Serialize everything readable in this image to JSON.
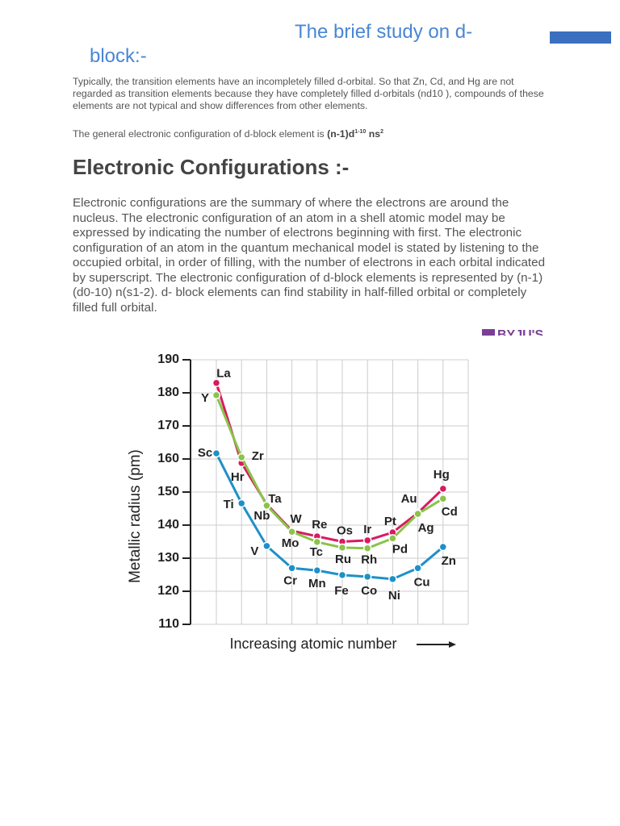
{
  "header": {
    "title_line1": "The brief study on d-",
    "title_line2": "block:-"
  },
  "intro": "Typically, the transition elements  have an incompletely filled d-orbital. So that  Zn, Cd, and Hg are not regarded as transition elements because they have completely filled d-orbitals (nd10 ), compounds of these elements are not typical and show differences from other elements.",
  "general": {
    "text": "The general electronic configuration of d-block element is ",
    "formula_base": "(n-1)d",
    "formula_sup1": "1-10",
    "formula_mid": " ns",
    "formula_sup2": "2"
  },
  "heading": "Electronic Configurations :-",
  "body": "Electronic configurations are the summary of where the electrons are around the nucleus. The electronic configuration of an atom in a shell atomic model may be expressed by indicating the number of electrons beginning with first. The electronic configuration of an atom in the quantum mechanical model is stated by listening to the occupied orbital, in order of filling, with the number of electrons in each orbital indicated by superscript. The electronic configuration of d-block elements is represented by (n-1) (d0-10) n(s1-2). d- block elements can find stability in half-filled orbital or completely filled full orbital.",
  "chart_data": {
    "type": "line",
    "logo": "BYJU'S",
    "x_label": "Increasing atomic number",
    "y_label": "Metallic radius (pm)",
    "ylim": [
      110,
      190
    ],
    "yticks": [
      110,
      120,
      130,
      140,
      150,
      160,
      170,
      180,
      190
    ],
    "grid": true,
    "series": [
      {
        "color": "#d81b60",
        "values": [
          183,
          158.8,
          146.3,
          138.3,
          136.6,
          135,
          135.4,
          137.8,
          143.7,
          151
        ],
        "labels": [
          "La",
          "Hr",
          "Ta",
          "W",
          "Re",
          "Os",
          "Ir",
          "Pt",
          "Au",
          "Hg"
        ]
      },
      {
        "color": "#8bc34a",
        "values": [
          179.3,
          160.5,
          145.9,
          138,
          134.9,
          133.2,
          133,
          136,
          143.4,
          148
        ],
        "labels": [
          "Y",
          "Zr",
          "Nb",
          "Mo",
          "Tc",
          "Ru",
          "Rh",
          "Pd",
          "Ag",
          "Cd"
        ]
      },
      {
        "color": "#1e90c8",
        "values": [
          161.7,
          146.6,
          133.7,
          127,
          126.3,
          124.9,
          124.4,
          123.7,
          127,
          133.4
        ],
        "labels": [
          "Sc",
          "Ti",
          "V",
          "Cr",
          "Mn",
          "Fe",
          "Co",
          "Ni",
          "Cu",
          "Zn"
        ]
      }
    ]
  }
}
